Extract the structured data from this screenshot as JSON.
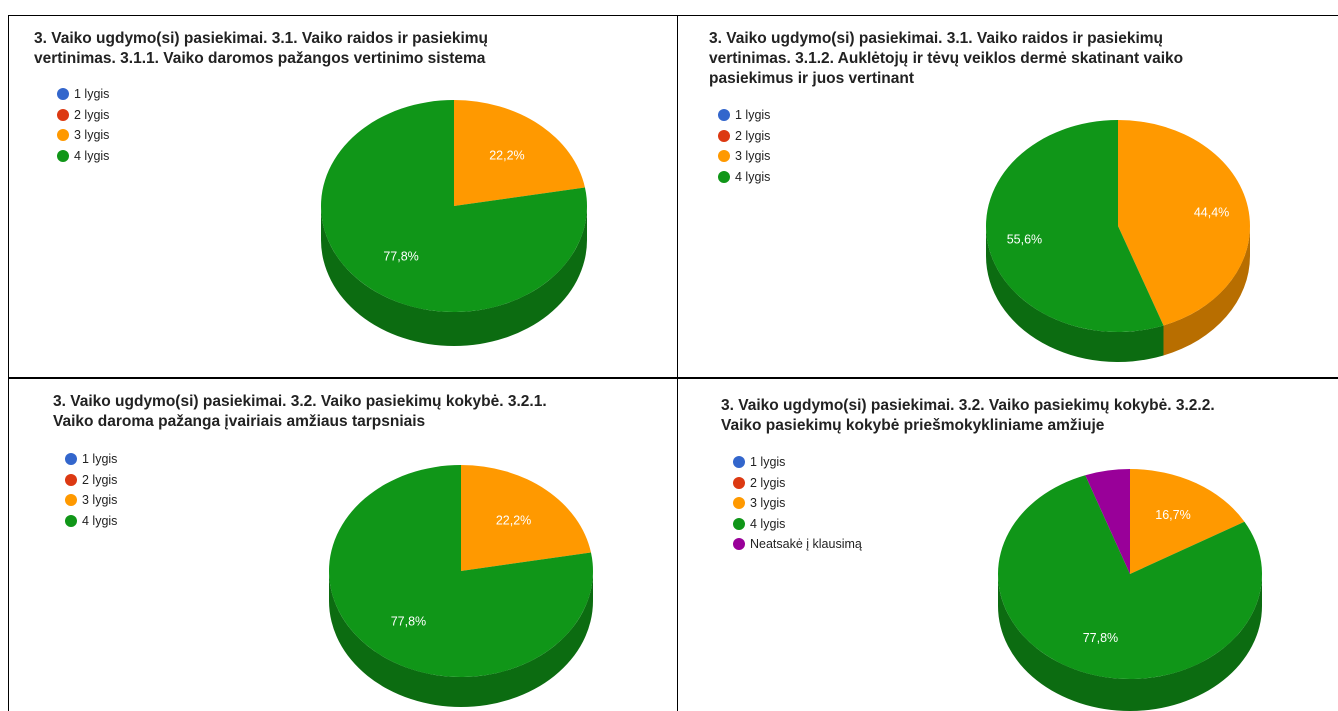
{
  "chart_data": [
    {
      "type": "pie",
      "title": "3. Vaiko ugdymo(si) pasiekimai. 3.1. Vaiko raidos ir pasiekimų\nvertinimas. 3.1.1. Vaiko daromos pažangos vertinimo sistema",
      "legend": [
        "1 lygis",
        "2 lygis",
        "3 lygis",
        "4 lygis"
      ],
      "legend_colors": [
        "#3366cc",
        "#dc3912",
        "#ff9900",
        "#109618"
      ],
      "legend_position": "top-left",
      "slices": [
        {
          "name": "3 lygis",
          "value": 22.2,
          "color": "#ff9900",
          "label": "22,2%"
        },
        {
          "name": "4 lygis",
          "value": 77.8,
          "color": "#109618",
          "label": "77,8%"
        }
      ]
    },
    {
      "type": "pie",
      "title": "3. Vaiko ugdymo(si) pasiekimai. 3.1. Vaiko raidos ir pasiekimų\nvertinimas. 3.1.2. Auklėtojų ir tėvų veiklos dermė skatinant vaiko\npasiekimus ir juos vertinant",
      "legend": [
        "1 lygis",
        "2 lygis",
        "3 lygis",
        "4 lygis"
      ],
      "legend_colors": [
        "#3366cc",
        "#dc3912",
        "#ff9900",
        "#109618"
      ],
      "legend_position": "top-left",
      "slices": [
        {
          "name": "3 lygis",
          "value": 44.4,
          "color": "#ff9900",
          "label": "44,4%"
        },
        {
          "name": "4 lygis",
          "value": 55.6,
          "color": "#109618",
          "label": "55,6%"
        }
      ]
    },
    {
      "type": "pie",
      "title": "3. Vaiko ugdymo(si) pasiekimai. 3.2. Vaiko pasiekimų kokybė. 3.2.1.\nVaiko daroma pažanga įvairiais amžiaus tarpsniais",
      "legend": [
        "1 lygis",
        "2 lygis",
        "3 lygis",
        "4 lygis"
      ],
      "legend_colors": [
        "#3366cc",
        "#dc3912",
        "#ff9900",
        "#109618"
      ],
      "legend_position": "top-left",
      "slices": [
        {
          "name": "3 lygis",
          "value": 22.2,
          "color": "#ff9900",
          "label": "22,2%"
        },
        {
          "name": "4 lygis",
          "value": 77.8,
          "color": "#109618",
          "label": "77,8%"
        }
      ]
    },
    {
      "type": "pie",
      "title": "3. Vaiko ugdymo(si) pasiekimai. 3.2. Vaiko pasiekimų kokybė. 3.2.2.\nVaiko pasiekimų kokybė priešmokykliniame amžiuje",
      "legend": [
        "1 lygis",
        "2 lygis",
        "3 lygis",
        "4 lygis",
        "Neatsakė į klausimą"
      ],
      "legend_colors": [
        "#3366cc",
        "#dc3912",
        "#ff9900",
        "#109618",
        "#990099"
      ],
      "legend_position": "top-left",
      "slices": [
        {
          "name": "3 lygis",
          "value": 16.7,
          "color": "#ff9900",
          "label": "16,7%"
        },
        {
          "name": "4 lygis",
          "value": 77.8,
          "color": "#109618",
          "label": "77,8%"
        },
        {
          "name": "Neatsakė į klausimą",
          "value": 5.5,
          "color": "#990099",
          "label": ""
        }
      ]
    }
  ]
}
